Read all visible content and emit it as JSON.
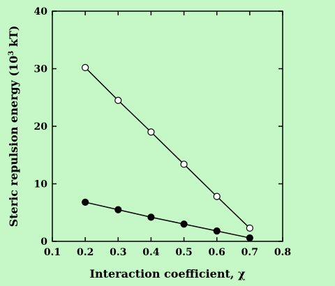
{
  "colors": {
    "background": "#c6f7c6",
    "ink": "#000000",
    "open_marker_fill": "#ffffff"
  },
  "chart_data": {
    "type": "line",
    "title": "",
    "xlabel": "Interaction coefficient, χ",
    "ylabel_main": "Steric repulsion energy (10",
    "ylabel_sup": "3",
    "ylabel_tail": " kT)",
    "xlim": [
      0.1,
      0.8
    ],
    "ylim": [
      0,
      40
    ],
    "x_ticks": [
      0.1,
      0.2,
      0.3,
      0.4,
      0.5,
      0.6,
      0.7,
      0.8
    ],
    "x_tick_labels": [
      "0.1",
      "0.2",
      "0.3",
      "0.4",
      "0.5",
      "0.6",
      "0.7",
      "0.8"
    ],
    "y_ticks": [
      0,
      10,
      20,
      30,
      40
    ],
    "y_tick_labels": [
      "0",
      "10",
      "20",
      "30",
      "40"
    ],
    "grid": false,
    "legend": "none",
    "series": [
      {
        "marker": "open-circle",
        "x": [
          0.2,
          0.3,
          0.4,
          0.5,
          0.6,
          0.7
        ],
        "values": [
          30.2,
          24.5,
          19.0,
          13.4,
          7.8,
          2.3
        ]
      },
      {
        "marker": "filled-circle",
        "x": [
          0.2,
          0.3,
          0.4,
          0.5,
          0.6,
          0.7
        ],
        "values": [
          6.8,
          5.5,
          4.2,
          3.0,
          1.8,
          0.6
        ]
      }
    ]
  }
}
